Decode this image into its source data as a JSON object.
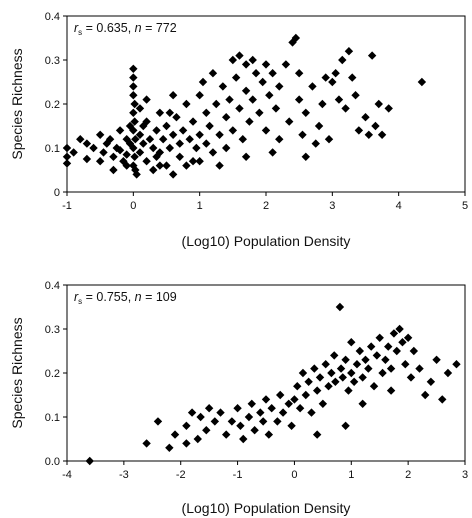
{
  "chart_data": [
    {
      "type": "scatter",
      "title": "",
      "xlabel": "(Log10) Population Density",
      "ylabel": "Species Richness",
      "xlim": [
        -1,
        5
      ],
      "ylim": [
        0,
        0.4
      ],
      "xticks": [
        "-1",
        "0",
        "1",
        "2",
        "3",
        "4",
        "5"
      ],
      "yticks": [
        "0",
        "0.1",
        "0.2",
        "0.3",
        "0.4"
      ],
      "annotation": {
        "r_label": "r",
        "r_sub": "s",
        "r_value": " = 0.635, ",
        "n_label": "n",
        "n_value": " = 772"
      },
      "grid": false,
      "points": [
        [
          -1,
          0.1
        ],
        [
          -1,
          0.08
        ],
        [
          -1,
          0.065
        ],
        [
          -0.9,
          0.09
        ],
        [
          -0.8,
          0.12
        ],
        [
          -0.7,
          0.11
        ],
        [
          -0.7,
          0.075
        ],
        [
          -0.6,
          0.1
        ],
        [
          -0.5,
          0.13
        ],
        [
          -0.5,
          0.07
        ],
        [
          -0.45,
          0.09
        ],
        [
          -0.4,
          0.11
        ],
        [
          -0.35,
          0.12
        ],
        [
          -0.3,
          0.08
        ],
        [
          -0.25,
          0.1
        ],
        [
          -0.2,
          0.14
        ],
        [
          -0.2,
          0.095
        ],
        [
          -0.15,
          0.07
        ],
        [
          -0.1,
          0.12
        ],
        [
          -0.1,
          0.085
        ],
        [
          -0.05,
          0.11
        ],
        [
          -0.05,
          0.15
        ],
        [
          0,
          0.28
        ],
        [
          0,
          0.26
        ],
        [
          0,
          0.24
        ],
        [
          0,
          0.22
        ],
        [
          0.02,
          0.2
        ],
        [
          0,
          0.18
        ],
        [
          0.02,
          0.16
        ],
        [
          0,
          0.14
        ],
        [
          0.03,
          0.12
        ],
        [
          0,
          0.1
        ],
        [
          0.02,
          0.08
        ],
        [
          0,
          0.06
        ],
        [
          0.03,
          0.05
        ],
        [
          0.05,
          0.04
        ],
        [
          0.1,
          0.13
        ],
        [
          0.1,
          0.09
        ],
        [
          0.15,
          0.11
        ],
        [
          0.2,
          0.16
        ],
        [
          0.2,
          0.07
        ],
        [
          0.25,
          0.12
        ],
        [
          0.3,
          0.1
        ],
        [
          0.3,
          0.05
        ],
        [
          0.35,
          0.14
        ],
        [
          0.4,
          0.09
        ],
        [
          0.4,
          0.18
        ],
        [
          0.45,
          0.12
        ],
        [
          0.5,
          0.06
        ],
        [
          0.5,
          0.15
        ],
        [
          0.55,
          0.1
        ],
        [
          0.6,
          0.13
        ],
        [
          0.6,
          0.04
        ],
        [
          0.65,
          0.17
        ],
        [
          0.7,
          0.11
        ],
        [
          0.7,
          0.08
        ],
        [
          0.75,
          0.14
        ],
        [
          0.8,
          0.2
        ],
        [
          0.8,
          0.06
        ],
        [
          0.85,
          0.12
        ],
        [
          0.9,
          0.16
        ],
        [
          0.95,
          0.1
        ],
        [
          1.0,
          0.22
        ],
        [
          1.0,
          0.13
        ],
        [
          1.0,
          0.07
        ],
        [
          1.05,
          0.25
        ],
        [
          1.1,
          0.18
        ],
        [
          1.1,
          0.11
        ],
        [
          1.15,
          0.15
        ],
        [
          1.2,
          0.27
        ],
        [
          1.2,
          0.09
        ],
        [
          1.25,
          0.2
        ],
        [
          1.3,
          0.13
        ],
        [
          1.35,
          0.24
        ],
        [
          1.4,
          0.17
        ],
        [
          1.4,
          0.1
        ],
        [
          1.45,
          0.21
        ],
        [
          1.5,
          0.3
        ],
        [
          1.5,
          0.14
        ],
        [
          1.55,
          0.26
        ],
        [
          1.6,
          0.31
        ],
        [
          1.6,
          0.19
        ],
        [
          1.65,
          0.12
        ],
        [
          1.7,
          0.23
        ],
        [
          1.7,
          0.29
        ],
        [
          1.75,
          0.16
        ],
        [
          1.8,
          0.3
        ],
        [
          1.8,
          0.21
        ],
        [
          1.85,
          0.27
        ],
        [
          1.9,
          0.18
        ],
        [
          1.95,
          0.25
        ],
        [
          2.0,
          0.29
        ],
        [
          2.0,
          0.14
        ],
        [
          2.05,
          0.22
        ],
        [
          2.1,
          0.27
        ],
        [
          2.15,
          0.19
        ],
        [
          2.2,
          0.12
        ],
        [
          2.2,
          0.24
        ],
        [
          2.3,
          0.29
        ],
        [
          2.35,
          0.16
        ],
        [
          2.4,
          0.34
        ],
        [
          2.45,
          0.35
        ],
        [
          2.5,
          0.21
        ],
        [
          2.5,
          0.27
        ],
        [
          2.55,
          0.13
        ],
        [
          2.6,
          0.18
        ],
        [
          2.7,
          0.24
        ],
        [
          2.75,
          0.11
        ],
        [
          2.8,
          0.15
        ],
        [
          2.85,
          0.2
        ],
        [
          2.9,
          0.26
        ],
        [
          2.95,
          0.12
        ],
        [
          3.0,
          0.25
        ],
        [
          3.05,
          0.27
        ],
        [
          3.1,
          0.21
        ],
        [
          3.15,
          0.3
        ],
        [
          3.2,
          0.19
        ],
        [
          3.25,
          0.32
        ],
        [
          3.3,
          0.26
        ],
        [
          3.35,
          0.22
        ],
        [
          3.4,
          0.14
        ],
        [
          3.5,
          0.17
        ],
        [
          3.55,
          0.13
        ],
        [
          3.6,
          0.31
        ],
        [
          3.65,
          0.15
        ],
        [
          3.7,
          0.2
        ],
        [
          3.75,
          0.13
        ],
        [
          3.85,
          0.19
        ],
        [
          4.35,
          0.25
        ],
        [
          -0.3,
          0.05
        ],
        [
          0.1,
          0.19
        ],
        [
          0.2,
          0.21
        ],
        [
          0.4,
          0.06
        ],
        [
          0.6,
          0.22
        ],
        [
          0.9,
          0.07
        ],
        [
          1.3,
          0.06
        ],
        [
          1.7,
          0.08
        ],
        [
          2.1,
          0.09
        ],
        [
          2.6,
          0.08
        ],
        [
          0.15,
          0.15
        ],
        [
          -0.1,
          0.06
        ],
        [
          0.35,
          0.08
        ],
        [
          0.55,
          0.18
        ]
      ]
    },
    {
      "type": "scatter",
      "title": "",
      "xlabel": "(Log10) Population Density",
      "ylabel": "Species Richness",
      "xlim": [
        -4,
        3
      ],
      "ylim": [
        0,
        0.4
      ],
      "xticks": [
        "-4",
        "-3",
        "-2",
        "-1",
        "0",
        "1",
        "2",
        "3"
      ],
      "yticks": [
        "0.0",
        "0.1",
        "0.2",
        "0.3",
        "0.4"
      ],
      "annotation": {
        "r_label": "r",
        "r_sub": "s",
        "r_value": " = 0.755, ",
        "n_label": "n",
        "n_value": " = 109"
      },
      "grid": false,
      "points": [
        [
          -3.6,
          0.0
        ],
        [
          -2.6,
          0.04
        ],
        [
          -2.4,
          0.09
        ],
        [
          -2.2,
          0.03
        ],
        [
          -2.1,
          0.06
        ],
        [
          -1.9,
          0.08
        ],
        [
          -1.8,
          0.11
        ],
        [
          -1.7,
          0.05
        ],
        [
          -1.65,
          0.1
        ],
        [
          -1.55,
          0.07
        ],
        [
          -1.5,
          0.12
        ],
        [
          -1.4,
          0.09
        ],
        [
          -1.3,
          0.11
        ],
        [
          -1.2,
          0.06
        ],
        [
          -1.1,
          0.09
        ],
        [
          -1.0,
          0.12
        ],
        [
          -0.95,
          0.08
        ],
        [
          -0.9,
          0.05
        ],
        [
          -0.8,
          0.1
        ],
        [
          -0.75,
          0.13
        ],
        [
          -0.7,
          0.07
        ],
        [
          -0.6,
          0.11
        ],
        [
          -0.55,
          0.09
        ],
        [
          -0.5,
          0.14
        ],
        [
          -0.45,
          0.06
        ],
        [
          -0.4,
          0.12
        ],
        [
          -0.3,
          0.09
        ],
        [
          -0.25,
          0.15
        ],
        [
          -0.2,
          0.11
        ],
        [
          -0.1,
          0.13
        ],
        [
          -0.05,
          0.08
        ],
        [
          0.0,
          0.14
        ],
        [
          0.05,
          0.17
        ],
        [
          0.1,
          0.12
        ],
        [
          0.15,
          0.2
        ],
        [
          0.2,
          0.15
        ],
        [
          0.25,
          0.18
        ],
        [
          0.3,
          0.11
        ],
        [
          0.35,
          0.21
        ],
        [
          0.4,
          0.16
        ],
        [
          0.45,
          0.19
        ],
        [
          0.5,
          0.13
        ],
        [
          0.55,
          0.22
        ],
        [
          0.6,
          0.17
        ],
        [
          0.65,
          0.2
        ],
        [
          0.7,
          0.24
        ],
        [
          0.72,
          0.18
        ],
        [
          0.8,
          0.35
        ],
        [
          0.82,
          0.21
        ],
        [
          0.85,
          0.19
        ],
        [
          0.9,
          0.23
        ],
        [
          0.95,
          0.16
        ],
        [
          1.0,
          0.2
        ],
        [
          1.0,
          0.27
        ],
        [
          1.05,
          0.18
        ],
        [
          1.1,
          0.22
        ],
        [
          1.15,
          0.25
        ],
        [
          1.2,
          0.19
        ],
        [
          1.25,
          0.23
        ],
        [
          1.3,
          0.21
        ],
        [
          1.35,
          0.26
        ],
        [
          1.4,
          0.17
        ],
        [
          1.45,
          0.24
        ],
        [
          1.5,
          0.28
        ],
        [
          1.55,
          0.2
        ],
        [
          1.6,
          0.23
        ],
        [
          1.65,
          0.26
        ],
        [
          1.7,
          0.21
        ],
        [
          1.75,
          0.29
        ],
        [
          1.8,
          0.25
        ],
        [
          1.85,
          0.3
        ],
        [
          1.9,
          0.27
        ],
        [
          1.95,
          0.22
        ],
        [
          2.0,
          0.28
        ],
        [
          2.05,
          0.19
        ],
        [
          2.1,
          0.25
        ],
        [
          2.2,
          0.21
        ],
        [
          2.3,
          0.15
        ],
        [
          2.4,
          0.18
        ],
        [
          2.5,
          0.23
        ],
        [
          2.6,
          0.14
        ],
        [
          2.7,
          0.2
        ],
        [
          2.85,
          0.22
        ],
        [
          0.4,
          0.06
        ],
        [
          0.9,
          0.08
        ],
        [
          -1.9,
          0.04
        ],
        [
          1.2,
          0.13
        ],
        [
          1.7,
          0.16
        ]
      ]
    }
  ]
}
